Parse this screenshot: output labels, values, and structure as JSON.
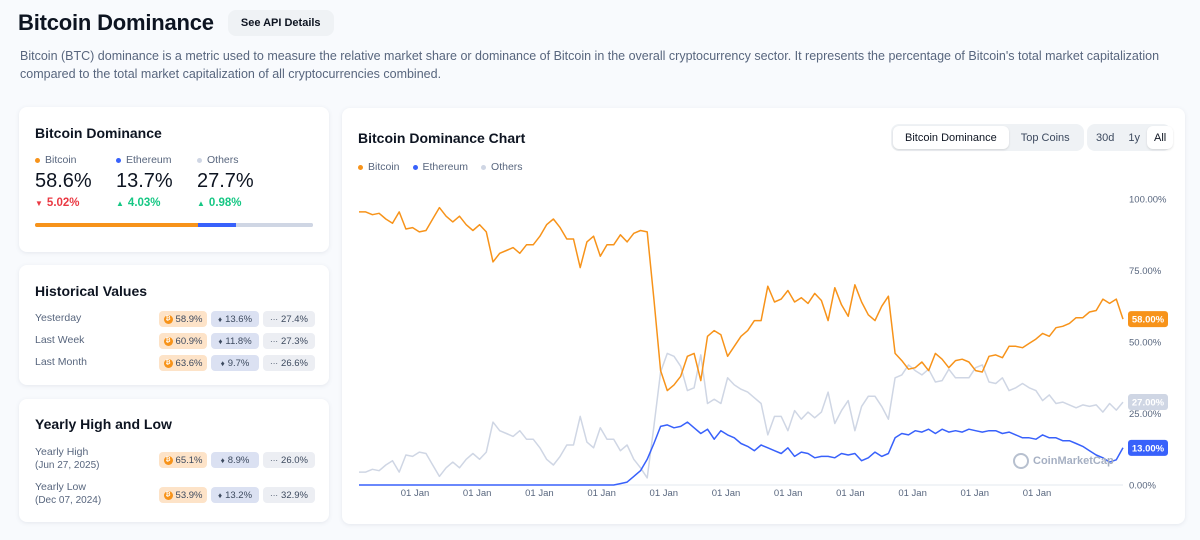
{
  "header": {
    "title": "Bitcoin Dominance",
    "api_button": "See API Details"
  },
  "description": "Bitcoin (BTC) dominance is a metric used to measure the relative market share or dominance of Bitcoin in the overall cryptocurrency sector. It represents the percentage of Bitcoin's total market capitalization compared to the total market capitalization of all cryptocurrencies combined.",
  "dominance_card": {
    "title": "Bitcoin Dominance",
    "items": [
      {
        "name": "Bitcoin",
        "value": "58.6%",
        "change": "5.02%",
        "direction": "down",
        "color": "#f7931a"
      },
      {
        "name": "Ethereum",
        "value": "13.7%",
        "change": "4.03%",
        "direction": "up",
        "color": "#3861fb"
      },
      {
        "name": "Others",
        "value": "27.7%",
        "change": "0.98%",
        "direction": "up",
        "color": "#cfd6e4"
      }
    ],
    "bar_shares": [
      58.6,
      13.7,
      27.7
    ]
  },
  "historical_card": {
    "title": "Historical Values",
    "rows": [
      {
        "label": "Yesterday",
        "btc": "58.9%",
        "eth": "13.6%",
        "others": "27.4%"
      },
      {
        "label": "Last Week",
        "btc": "60.9%",
        "eth": "11.8%",
        "others": "27.3%"
      },
      {
        "label": "Last Month",
        "btc": "63.6%",
        "eth": "9.7%",
        "others": "26.6%"
      }
    ]
  },
  "yearly_card": {
    "title": "Yearly High and Low",
    "rows": [
      {
        "label": "Yearly High",
        "date": "(Jun 27, 2025)",
        "btc": "65.1%",
        "eth": "8.9%",
        "others": "26.0%"
      },
      {
        "label": "Yearly Low",
        "date": "(Dec 07, 2024)",
        "btc": "53.9%",
        "eth": "13.2%",
        "others": "32.9%"
      }
    ]
  },
  "chart_panel": {
    "title": "Bitcoin Dominance Chart",
    "tabs": [
      "Bitcoin Dominance",
      "Top Coins"
    ],
    "active_tab": "Bitcoin Dominance",
    "ranges": [
      "30d",
      "1y",
      "All"
    ],
    "active_range": "All",
    "watermark": "CoinMarketCap"
  },
  "chart_data": {
    "type": "line",
    "title": "",
    "ylim": [
      0,
      100
    ],
    "y_ticks": [
      "0.00%",
      "25.00%",
      "50.00%",
      "75.00%",
      "100.00%"
    ],
    "x_tick_labels": [
      "01 Jan",
      "01 Jan",
      "01 Jan",
      "01 Jan",
      "01 Jan",
      "01 Jan",
      "01 Jan",
      "01 Jan",
      "01 Jan",
      "01 Jan",
      "01 Jan"
    ],
    "legend_position": "top-left",
    "grid": false,
    "series": [
      {
        "name": "Bitcoin",
        "color": "#f7931a",
        "end_label": "58.00%",
        "values": [
          95.5,
          95.5,
          94.5,
          95,
          93,
          91.5,
          95.5,
          89.5,
          90,
          88.5,
          89,
          93,
          97,
          94,
          92,
          94,
          91,
          89,
          91,
          88.5,
          78,
          81,
          82,
          83,
          81,
          84,
          84,
          87,
          91,
          93,
          90,
          86,
          86,
          76,
          85,
          87,
          80,
          84,
          84,
          87.5,
          85,
          88,
          89,
          88.5,
          65,
          40,
          33,
          35,
          38,
          45,
          46,
          36.5,
          52,
          54,
          52.5,
          45,
          48.5,
          52,
          54,
          57.5,
          57.5,
          69.5,
          64,
          65,
          68,
          64,
          65.5,
          63.5,
          67,
          64.5,
          57.5,
          69,
          63,
          59,
          70,
          64,
          59.5,
          57.5,
          62.5,
          66,
          46,
          43.5,
          40.5,
          41,
          43,
          40,
          46,
          44,
          41,
          43.5,
          44,
          43,
          40,
          39.5,
          45,
          45.5,
          44.5,
          48.5,
          48.5,
          48,
          49.5,
          51,
          53,
          52,
          55,
          55.5,
          56.5,
          58.5,
          58.5,
          60.5,
          61,
          65,
          63.5,
          65,
          58
        ]
      },
      {
        "name": "Ethereum",
        "color": "#3861fb",
        "end_label": "13.00%",
        "values": [
          0,
          0,
          0,
          0,
          0,
          0,
          0,
          0,
          0,
          0,
          0,
          0,
          0,
          0,
          0,
          0,
          0,
          0,
          0,
          0,
          0,
          0,
          0,
          0,
          0,
          0,
          0,
          0,
          0,
          0,
          0,
          0,
          0,
          0,
          0,
          0,
          0,
          0,
          0,
          0.5,
          1,
          3,
          5,
          9,
          14.5,
          20.5,
          21,
          20,
          20.5,
          22,
          20,
          18,
          19.5,
          16,
          19,
          17.5,
          16.5,
          14.5,
          13.5,
          12,
          14,
          13,
          12,
          11,
          13,
          10,
          11.5,
          11,
          9.5,
          10,
          10,
          9.5,
          11,
          10.5,
          11,
          8.5,
          9.5,
          11.5,
          10,
          11,
          16.5,
          18,
          17.5,
          19,
          18.5,
          19.5,
          18,
          19.5,
          18.5,
          19,
          18.5,
          19.5,
          19,
          18.5,
          19,
          19,
          18,
          18.5,
          17.5,
          16.5,
          16.5,
          16,
          17.5,
          16.5,
          16.5,
          15.5,
          15.5,
          14.5,
          13.5,
          12,
          10.5,
          9.5,
          8,
          8.8,
          13
        ]
      },
      {
        "name": "Others",
        "color": "#cfd6e4",
        "end_label": "27.00%",
        "values": [
          4.5,
          4.5,
          5.5,
          5,
          7,
          8.5,
          4.5,
          10.5,
          10,
          11.5,
          11,
          7,
          3,
          6,
          8,
          6,
          9,
          11,
          9,
          11.5,
          22,
          19,
          18,
          17,
          19,
          16,
          16,
          13,
          9,
          7,
          10,
          14,
          14,
          24,
          15,
          13,
          20,
          16,
          16,
          12,
          14,
          9,
          6,
          2.5,
          20.5,
          39.5,
          46,
          45,
          41.5,
          33,
          34,
          45.5,
          28.5,
          30,
          28.5,
          37.5,
          35,
          33.5,
          32.5,
          30.5,
          28.5,
          17.5,
          24,
          24,
          19,
          26,
          23,
          25.5,
          23.5,
          25.5,
          32.5,
          21.5,
          26,
          29.5,
          19,
          27.5,
          31,
          31,
          27.5,
          23,
          37.5,
          38.5,
          42,
          40,
          38.5,
          40.5,
          36,
          36.5,
          40.5,
          37.5,
          37.5,
          37.5,
          41,
          42,
          36,
          35.5,
          37.5,
          33,
          34,
          35.5,
          34,
          33,
          29.5,
          31.5,
          28.5,
          29,
          28,
          27,
          28,
          27.5,
          28,
          25.5,
          28.5,
          26.2,
          29
        ]
      }
    ]
  }
}
